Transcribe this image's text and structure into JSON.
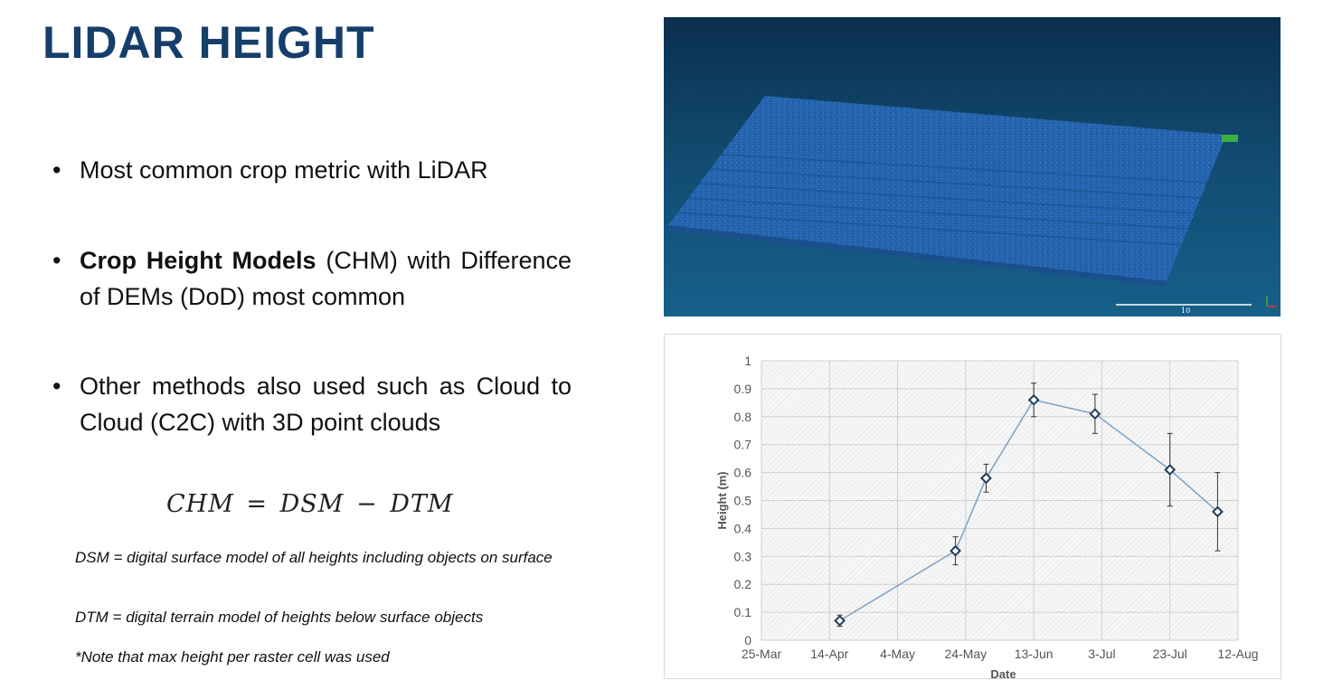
{
  "slide": {
    "title": "LIDAR HEIGHT"
  },
  "bullets": [
    {
      "marker": "•",
      "bold": "",
      "text": "Most common crop metric with LiDAR"
    },
    {
      "marker": "•",
      "bold": "Crop Height Models",
      "text": " (CHM) with Difference of DEMs (DoD) most common"
    },
    {
      "marker": "•",
      "bold": "",
      "text": "Other methods also used such as Cloud to Cloud (C2C) with 3D point clouds"
    }
  ],
  "formula": "CHM = DSM − DTM",
  "notes": {
    "dsm": "DSM = digital surface model of all heights including objects on surface",
    "dtm": "DTM = digital terrain model of heights below surface objects",
    "max": "*Note that max height per raster cell was used"
  },
  "lidar_image": {
    "scale_label": "10",
    "colors": {
      "background": "#114a6f",
      "points": "#2a6fc0",
      "vegetation": "#3cb043"
    }
  },
  "chart_data": {
    "type": "scatter",
    "title": "",
    "xlabel": "Date",
    "ylabel": "Height (m)",
    "x_tick_labels": [
      "25-Mar",
      "14-Apr",
      "4-May",
      "24-May",
      "13-Jun",
      "3-Jul",
      "23-Jul",
      "12-Aug"
    ],
    "y_tick_labels": [
      "0",
      "0.1",
      "0.2",
      "0.3",
      "0.4",
      "0.5",
      "0.6",
      "0.7",
      "0.8",
      "0.9",
      "1"
    ],
    "xlim": [
      "2014-03-25",
      "2014-08-12"
    ],
    "ylim": [
      0,
      1
    ],
    "grid": true,
    "legend": "none",
    "series": [
      {
        "points": [
          {
            "x": "2014-04-17",
            "y": 0.07,
            "err": 0.02
          },
          {
            "x": "2014-05-21",
            "y": 0.32,
            "err": 0.05
          },
          {
            "x": "2014-05-30",
            "y": 0.58,
            "err": 0.05
          },
          {
            "x": "2014-06-13",
            "y": 0.86,
            "err": 0.06
          },
          {
            "x": "2014-07-01",
            "y": 0.81,
            "err": 0.07
          },
          {
            "x": "2014-07-23",
            "y": 0.61,
            "err": 0.13
          },
          {
            "x": "2014-08-06",
            "y": 0.46,
            "err": 0.14
          }
        ]
      }
    ],
    "colors": {
      "line": "#7ea1c4",
      "marker": "#1f3d5c",
      "grid": "#cfcfcf",
      "plot_bg": "#f2f2f2"
    }
  }
}
